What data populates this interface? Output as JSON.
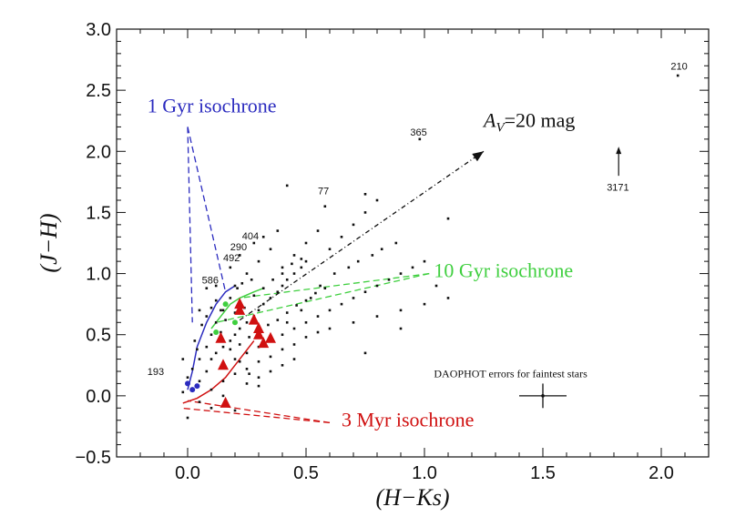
{
  "chart_data": {
    "type": "scatter",
    "title": "",
    "xlabel": "(H−Ks)",
    "ylabel": "(J−H)",
    "xlim": [
      -0.3,
      2.2
    ],
    "ylim": [
      -0.5,
      3.0
    ],
    "xticks": [
      {
        "value": 0.0,
        "label": "0.0"
      },
      {
        "value": 0.5,
        "label": "0.5"
      },
      {
        "value": 1.0,
        "label": "1.0"
      },
      {
        "value": 1.5,
        "label": "1.5"
      },
      {
        "value": 2.0,
        "label": "2.0"
      }
    ],
    "yticks": [
      {
        "value": -0.5,
        "label": "−0.5"
      },
      {
        "value": 0.0,
        "label": "0.0"
      },
      {
        "value": 0.5,
        "label": "0.5"
      },
      {
        "value": 1.0,
        "label": "1.0"
      },
      {
        "value": 1.5,
        "label": "1.5"
      },
      {
        "value": 2.0,
        "label": "2.0"
      },
      {
        "value": 2.5,
        "label": "2.5"
      },
      {
        "value": 3.0,
        "label": "3.0"
      }
    ],
    "grid": false,
    "legend": "none",
    "colors": {
      "black": "#111111",
      "blue": "#2b2bbf",
      "green": "#3fcf3f",
      "red": "#d01010"
    },
    "field_stars": [
      [
        0.02,
        0.05
      ],
      [
        0.05,
        0.12
      ],
      [
        0.08,
        0.2
      ],
      [
        0.1,
        0.3
      ],
      [
        0.12,
        0.35
      ],
      [
        0.15,
        0.4
      ],
      [
        0.18,
        0.45
      ],
      [
        0.2,
        0.5
      ],
      [
        0.22,
        0.55
      ],
      [
        0.25,
        0.6
      ],
      [
        0.28,
        0.65
      ],
      [
        0.3,
        0.7
      ],
      [
        0.32,
        0.75
      ],
      [
        0.35,
        0.8
      ],
      [
        0.38,
        0.85
      ],
      [
        0.4,
        0.9
      ],
      [
        0.42,
        0.95
      ],
      [
        0.45,
        1.0
      ],
      [
        0.48,
        1.05
      ],
      [
        0.5,
        1.1
      ],
      [
        0.05,
        0.3
      ],
      [
        0.08,
        0.4
      ],
      [
        0.1,
        0.5
      ],
      [
        0.12,
        0.6
      ],
      [
        0.15,
        0.7
      ],
      [
        0.18,
        0.8
      ],
      [
        0.2,
        0.9
      ],
      [
        0.25,
        1.0
      ],
      [
        0.3,
        1.1
      ],
      [
        0.35,
        1.2
      ],
      [
        0.15,
        0.25
      ],
      [
        0.2,
        0.3
      ],
      [
        0.25,
        0.35
      ],
      [
        0.3,
        0.4
      ],
      [
        0.35,
        0.45
      ],
      [
        0.4,
        0.5
      ],
      [
        0.45,
        0.55
      ],
      [
        0.5,
        0.6
      ],
      [
        0.55,
        0.65
      ],
      [
        0.6,
        0.7
      ],
      [
        0.65,
        0.75
      ],
      [
        0.7,
        0.8
      ],
      [
        0.75,
        0.85
      ],
      [
        0.8,
        0.9
      ],
      [
        0.85,
        0.95
      ],
      [
        0.9,
        1.0
      ],
      [
        0.95,
        1.05
      ],
      [
        1.0,
        1.1
      ],
      [
        0.6,
        1.2
      ],
      [
        0.65,
        1.3
      ],
      [
        0.7,
        1.4
      ],
      [
        0.75,
        1.5
      ],
      [
        0.8,
        1.6
      ],
      [
        0.55,
        1.35
      ],
      [
        0.5,
        1.25
      ],
      [
        0.45,
        1.15
      ],
      [
        0.4,
        1.05
      ],
      [
        0.6,
        0.55
      ],
      [
        0.7,
        0.6
      ],
      [
        0.8,
        0.65
      ],
      [
        0.9,
        0.7
      ],
      [
        1.0,
        0.75
      ],
      [
        1.1,
        0.8
      ],
      [
        0.75,
        0.35
      ],
      [
        0.9,
        0.55
      ],
      [
        1.05,
        0.9
      ],
      [
        1.1,
        1.45
      ],
      [
        0.75,
        1.65
      ],
      [
        0.42,
        1.72
      ],
      [
        0.05,
        0.7
      ],
      [
        -0.02,
        0.3
      ],
      [
        0.0,
        0.15
      ],
      [
        0.03,
        0.45
      ],
      [
        0.08,
        0.65
      ],
      [
        0.12,
        0.9
      ],
      [
        0.18,
        1.05
      ],
      [
        0.22,
        1.15
      ],
      [
        0.28,
        1.25
      ],
      [
        0.32,
        1.3
      ],
      [
        0.38,
        1.35
      ],
      [
        0.42,
        0.6
      ],
      [
        0.48,
        0.7
      ],
      [
        0.52,
        0.8
      ],
      [
        0.56,
        0.9
      ],
      [
        0.62,
        1.0
      ],
      [
        0.68,
        1.05
      ],
      [
        0.72,
        1.1
      ],
      [
        0.78,
        1.15
      ],
      [
        0.82,
        1.2
      ],
      [
        0.88,
        1.25
      ],
      [
        0.1,
        0.05
      ],
      [
        0.15,
        0.12
      ],
      [
        0.2,
        0.18
      ],
      [
        0.25,
        0.22
      ],
      [
        0.3,
        0.28
      ],
      [
        0.35,
        0.32
      ],
      [
        0.4,
        0.38
      ],
      [
        0.45,
        0.42
      ],
      [
        0.5,
        0.48
      ],
      [
        0.55,
        0.52
      ],
      [
        0.05,
        -0.05
      ],
      [
        0.1,
        -0.1
      ],
      [
        0.2,
        -0.12
      ],
      [
        0.0,
        -0.18
      ],
      [
        0.15,
        0.0
      ],
      [
        0.25,
        0.1
      ],
      [
        0.3,
        0.15
      ],
      [
        0.35,
        0.2
      ],
      [
        0.4,
        0.25
      ],
      [
        0.45,
        0.3
      ],
      [
        0.12,
        0.78
      ],
      [
        0.16,
        0.62
      ],
      [
        0.2,
        0.68
      ],
      [
        0.24,
        0.72
      ],
      [
        0.28,
        0.82
      ],
      [
        0.32,
        0.88
      ],
      [
        0.36,
        0.95
      ],
      [
        0.4,
        1.0
      ],
      [
        0.44,
        1.08
      ],
      [
        0.48,
        1.12
      ],
      [
        0.22,
        0.42
      ],
      [
        0.26,
        0.48
      ],
      [
        0.3,
        0.52
      ],
      [
        0.34,
        0.58
      ],
      [
        0.38,
        0.62
      ],
      [
        0.42,
        0.68
      ],
      [
        0.46,
        0.74
      ],
      [
        0.5,
        0.78
      ],
      [
        0.54,
        0.84
      ],
      [
        0.58,
        0.88
      ],
      [
        0.08,
        0.88
      ],
      [
        0.1,
        0.72
      ],
      [
        0.14,
        0.52
      ],
      [
        0.18,
        0.38
      ],
      [
        0.22,
        0.28
      ],
      [
        0.26,
        0.18
      ],
      [
        0.3,
        0.08
      ],
      [
        0.06,
        0.58
      ],
      [
        0.04,
        0.38
      ],
      [
        0.02,
        0.22
      ]
    ],
    "cluster_members": [
      [
        0.22,
        0.75
      ],
      [
        0.28,
        0.62
      ],
      [
        0.3,
        0.55
      ],
      [
        0.35,
        0.47
      ],
      [
        0.32,
        0.43
      ],
      [
        0.14,
        0.47
      ],
      [
        0.15,
        0.25
      ],
      [
        0.16,
        -0.06
      ],
      [
        0.22,
        0.7
      ],
      [
        0.3,
        0.5
      ]
    ],
    "blue_members": [
      [
        0.0,
        0.1
      ],
      [
        0.02,
        0.05
      ],
      [
        0.04,
        0.08
      ]
    ],
    "green_members": [
      [
        0.12,
        0.52
      ],
      [
        0.16,
        0.75
      ],
      [
        0.2,
        0.6
      ]
    ],
    "isochrones": [
      {
        "label": "1 Gyr isochrone",
        "color": "#2b2bbf",
        "curve": [
          [
            0.0,
            0.05
          ],
          [
            0.02,
            0.2
          ],
          [
            0.04,
            0.4
          ],
          [
            0.08,
            0.6
          ],
          [
            0.12,
            0.75
          ],
          [
            0.16,
            0.85
          ],
          [
            0.2,
            0.9
          ]
        ],
        "label_pos": [
          -0.17,
          2.32
        ],
        "pointer_from": [
          0.0,
          2.2
        ],
        "pointer_to": [
          [
            0.02,
            0.6
          ],
          [
            0.16,
            0.85
          ]
        ]
      },
      {
        "label": "10 Gyr isochrone",
        "color": "#3fcf3f",
        "curve": [
          [
            0.1,
            0.55
          ],
          [
            0.14,
            0.65
          ],
          [
            0.18,
            0.75
          ],
          [
            0.22,
            0.8
          ],
          [
            0.28,
            0.85
          ],
          [
            0.32,
            0.88
          ]
        ],
        "label_pos": [
          1.04,
          0.97
        ],
        "pointer_from": [
          1.02,
          1.0
        ],
        "pointer_to": [
          [
            0.12,
            0.6
          ],
          [
            0.22,
            0.8
          ]
        ]
      },
      {
        "label": "3 Myr isochrone",
        "color": "#d01010",
        "curve": [
          [
            -0.02,
            -0.06
          ],
          [
            0.04,
            -0.02
          ],
          [
            0.1,
            0.05
          ],
          [
            0.16,
            0.15
          ],
          [
            0.22,
            0.3
          ],
          [
            0.28,
            0.45
          ]
        ],
        "label_pos": [
          0.65,
          -0.25
        ],
        "pointer_from": [
          0.6,
          -0.22
        ],
        "pointer_to": [
          [
            -0.03,
            -0.1
          ],
          [
            0.0,
            -0.04
          ]
        ]
      }
    ],
    "reddening_vector": {
      "label_main": "A",
      "label_sub": "V",
      "label_rest": "=20 mag",
      "from": [
        0.22,
        0.62
      ],
      "to": [
        1.25,
        2.0
      ],
      "label_pos": [
        1.25,
        2.2
      ]
    },
    "labeled_stars": [
      {
        "label": "210",
        "x": 2.07,
        "y": 2.62,
        "lx": 2.04,
        "ly": 2.67
      },
      {
        "label": "365",
        "x": 0.98,
        "y": 2.1,
        "lx": 0.94,
        "ly": 2.13
      },
      {
        "label": "77",
        "x": 0.58,
        "y": 1.55,
        "lx": 0.55,
        "ly": 1.65
      },
      {
        "label": "404",
        "x": 0.27,
        "y": 0.95,
        "lx": 0.23,
        "ly": 1.28
      },
      {
        "label": "290",
        "x": 0.23,
        "y": 0.92,
        "lx": 0.18,
        "ly": 1.19
      },
      {
        "label": "492",
        "x": 0.21,
        "y": 0.88,
        "lx": 0.15,
        "ly": 1.1
      },
      {
        "label": "586",
        "x": 0.14,
        "y": 0.7,
        "lx": 0.06,
        "ly": 0.92
      },
      {
        "label": "193",
        "x": -0.02,
        "y": 0.03,
        "lx": -0.17,
        "ly": 0.17
      }
    ],
    "upper_limit": {
      "label": "3171",
      "x": 1.82,
      "y": 1.8,
      "lx": 1.77,
      "ly": 1.68
    },
    "error_bar": {
      "label": "DAOPHOT errors for faintest stars",
      "x": 1.5,
      "y": 0.0,
      "xerr": 0.1,
      "yerr": 0.1,
      "label_pos": [
        1.04,
        0.15
      ]
    }
  }
}
